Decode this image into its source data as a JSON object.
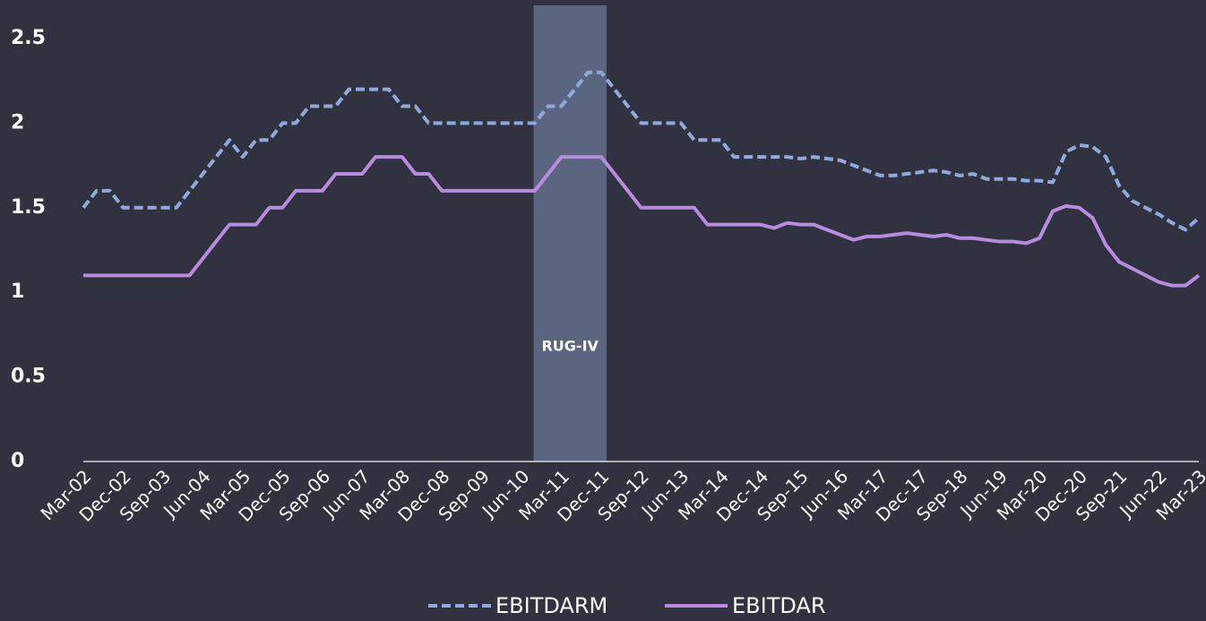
{
  "chart_data": {
    "type": "line",
    "categories": [
      "Mar-02",
      null,
      null,
      "Dec-02",
      null,
      null,
      "Sep-03",
      null,
      null,
      "Jun-04",
      null,
      null,
      "Mar-05",
      null,
      null,
      "Dec-05",
      null,
      null,
      "Sep-06",
      null,
      null,
      "Jun-07",
      null,
      null,
      "Mar-08",
      null,
      null,
      "Dec-08",
      null,
      null,
      "Sep-09",
      null,
      null,
      "Jun-10",
      null,
      null,
      "Mar-11",
      null,
      null,
      "Dec-11",
      null,
      null,
      "Sep-12",
      null,
      null,
      "Jun-13",
      null,
      null,
      "Mar-14",
      null,
      null,
      "Dec-14",
      null,
      null,
      "Sep-15",
      null,
      null,
      "Jun-16",
      null,
      null,
      "Mar-17",
      null,
      null,
      "Dec-17",
      null,
      null,
      "Sep-18",
      null,
      null,
      "Jun-19",
      null,
      null,
      "Mar-20",
      null,
      null,
      "Dec-20",
      null,
      null,
      "Sep-21",
      null,
      null,
      "Jun-22",
      null,
      null,
      "Mar-23"
    ],
    "series": [
      {
        "name": "EBITDARM",
        "color": "#8fa9dc",
        "dashed": true,
        "values": [
          1.5,
          1.6,
          1.6,
          1.5,
          1.5,
          1.5,
          1.5,
          1.5,
          1.6,
          1.7,
          1.8,
          1.9,
          1.8,
          1.9,
          1.9,
          2.0,
          2.0,
          2.1,
          2.1,
          2.1,
          2.2,
          2.2,
          2.2,
          2.2,
          2.1,
          2.1,
          2.0,
          2.0,
          2.0,
          2.0,
          2.0,
          2.0,
          2.0,
          2.0,
          2.0,
          2.1,
          2.1,
          2.2,
          2.3,
          2.3,
          2.2,
          2.1,
          2.0,
          2.0,
          2.0,
          2.0,
          1.9,
          1.9,
          1.9,
          1.8,
          1.8,
          1.8,
          1.8,
          1.8,
          1.79,
          1.8,
          1.79,
          1.78,
          1.75,
          1.72,
          1.69,
          1.69,
          1.7,
          1.71,
          1.72,
          1.71,
          1.69,
          1.7,
          1.67,
          1.67,
          1.67,
          1.66,
          1.66,
          1.65,
          1.83,
          1.87,
          1.86,
          1.8,
          1.63,
          1.54,
          1.5,
          1.46,
          1.41,
          1.37,
          1.44
        ]
      },
      {
        "name": "EBITDAR",
        "color": "#b88be0",
        "dashed": false,
        "values": [
          1.1,
          1.1,
          1.1,
          1.1,
          1.1,
          1.1,
          1.1,
          1.1,
          1.1,
          1.2,
          1.3,
          1.4,
          1.4,
          1.4,
          1.5,
          1.5,
          1.6,
          1.6,
          1.6,
          1.7,
          1.7,
          1.7,
          1.8,
          1.8,
          1.8,
          1.7,
          1.7,
          1.6,
          1.6,
          1.6,
          1.6,
          1.6,
          1.6,
          1.6,
          1.6,
          1.7,
          1.8,
          1.8,
          1.8,
          1.8,
          1.7,
          1.6,
          1.5,
          1.5,
          1.5,
          1.5,
          1.5,
          1.4,
          1.4,
          1.4,
          1.4,
          1.4,
          1.38,
          1.41,
          1.4,
          1.4,
          1.37,
          1.34,
          1.31,
          1.33,
          1.33,
          1.34,
          1.35,
          1.34,
          1.33,
          1.34,
          1.32,
          1.32,
          1.31,
          1.3,
          1.3,
          1.29,
          1.32,
          1.48,
          1.51,
          1.5,
          1.44,
          1.28,
          1.18,
          1.14,
          1.1,
          1.06,
          1.04,
          1.04,
          1.1
        ]
      }
    ],
    "ylim": [
      0,
      2.7
    ],
    "yticks": [
      0,
      0.5,
      1,
      1.5,
      2,
      2.5
    ],
    "grid": false,
    "shaded_region": {
      "label": "RUG-IV",
      "x_range": [
        33.9,
        39.4
      ],
      "color": "#5a6680"
    },
    "legend": "bottom"
  }
}
